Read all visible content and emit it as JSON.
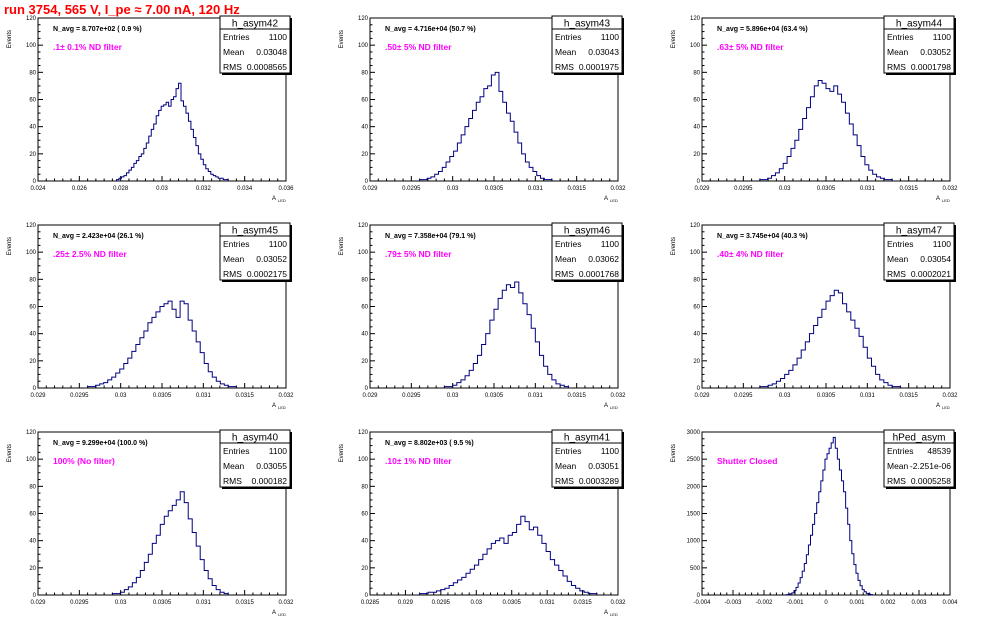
{
  "page_title": "run 3754,   565 V, I_pe ≈ 7.00 nA, 120 Hz",
  "colors": {
    "title": "#ff0000",
    "annotation": "#ff00ff",
    "histogram": "#000080",
    "axes": "#000000"
  },
  "chart_data": [
    {
      "type": "histogram",
      "stat_title": "h_asym42",
      "stats": [
        [
          "Entries",
          "1100"
        ],
        [
          "Mean",
          "0.03048"
        ],
        [
          "RMS",
          "0.0008565"
        ]
      ],
      "navg": "N_avg = 8.707e+02 ( 0.9 %)",
      "filter": ".1± 0.1% ND filter",
      "ylabel": "Events",
      "xlabel": "A",
      "xlabel_sub": "LED",
      "xlim": [
        0.024,
        0.036
      ],
      "ylim": [
        0,
        120
      ],
      "xticks": [
        "0.024",
        "0.026",
        "0.028",
        "0.03",
        "0.032",
        "0.034",
        "0.036"
      ],
      "yticks": [
        "0",
        "20",
        "40",
        "60",
        "80",
        "100",
        "120"
      ],
      "counts": [
        1,
        2,
        3,
        4,
        6,
        8,
        10,
        13,
        15,
        18,
        20,
        24,
        28,
        33,
        38,
        42,
        48,
        52,
        55,
        56,
        58,
        55,
        60,
        62,
        68,
        72,
        59,
        55,
        50,
        44,
        38,
        32,
        26,
        20,
        16,
        12,
        9,
        7,
        5,
        4,
        3,
        2,
        2,
        1,
        1
      ],
      "bin_range": [
        0.0278,
        0.0332
      ]
    },
    {
      "type": "histogram",
      "stat_title": "h_asym43",
      "stats": [
        [
          "Entries",
          "1100"
        ],
        [
          "Mean",
          "0.03043"
        ],
        [
          "RMS",
          "0.0001975"
        ]
      ],
      "navg": "N_avg = 4.716e+04 (50.7 %)",
      "filter": ".50± 5% ND filter",
      "ylabel": "Events",
      "xlabel": "A",
      "xlabel_sub": "LED",
      "xlim": [
        0.029,
        0.032
      ],
      "ylim": [
        0,
        120
      ],
      "xticks": [
        "0.029",
        "0.0295",
        "0.03",
        "0.0305",
        "0.031",
        "0.0315",
        "0.032"
      ],
      "yticks": [
        "0",
        "20",
        "40",
        "60",
        "80",
        "100",
        "120"
      ],
      "counts": [
        1,
        1,
        2,
        3,
        5,
        7,
        10,
        14,
        18,
        22,
        28,
        34,
        40,
        46,
        52,
        58,
        62,
        68,
        70,
        78,
        80,
        66,
        58,
        50,
        44,
        36,
        28,
        20,
        14,
        10,
        7,
        4,
        2,
        1,
        1
      ],
      "bin_range": [
        0.0296,
        0.0312
      ]
    },
    {
      "type": "histogram",
      "stat_title": "h_asym44",
      "stats": [
        [
          "Entries",
          "1100"
        ],
        [
          "Mean",
          "0.03052"
        ],
        [
          "RMS",
          "0.0001798"
        ]
      ],
      "navg": "N_avg = 5.896e+04 (63.4 %)",
      "filter": ".63± 5% ND filter",
      "ylabel": "Events",
      "xlabel": "A",
      "xlabel_sub": "LED",
      "xlim": [
        0.029,
        0.032
      ],
      "ylim": [
        0,
        120
      ],
      "xticks": [
        "0.029",
        "0.0295",
        "0.03",
        "0.0305",
        "0.031",
        "0.0315",
        "0.032"
      ],
      "yticks": [
        "0",
        "20",
        "40",
        "60",
        "80",
        "100",
        "120"
      ],
      "counts": [
        1,
        1,
        2,
        4,
        6,
        9,
        13,
        18,
        24,
        30,
        38,
        46,
        54,
        62,
        70,
        74,
        72,
        68,
        66,
        70,
        64,
        58,
        50,
        42,
        34,
        26,
        18,
        12,
        8,
        5,
        3,
        2,
        1,
        1
      ],
      "bin_range": [
        0.0297,
        0.0313
      ]
    },
    {
      "type": "histogram",
      "stat_title": "h_asym45",
      "stats": [
        [
          "Entries",
          "1100"
        ],
        [
          "Mean",
          "0.03052"
        ],
        [
          "RMS",
          "0.0002175"
        ]
      ],
      "navg": "N_avg = 2.423e+04 (26.1 %)",
      "filter": ".25± 2.5% ND filter",
      "ylabel": "Events",
      "xlabel": "A",
      "xlabel_sub": "LED",
      "xlim": [
        0.029,
        0.032
      ],
      "ylim": [
        0,
        120
      ],
      "xticks": [
        "0.029",
        "0.0295",
        "0.03",
        "0.0305",
        "0.031",
        "0.0315",
        "0.032"
      ],
      "yticks": [
        "0",
        "20",
        "40",
        "60",
        "80",
        "100",
        "120"
      ],
      "counts": [
        1,
        1,
        2,
        3,
        4,
        6,
        8,
        11,
        14,
        18,
        22,
        27,
        32,
        37,
        42,
        48,
        52,
        56,
        60,
        62,
        64,
        58,
        52,
        64,
        62,
        50,
        42,
        34,
        26,
        18,
        12,
        8,
        5,
        3,
        2,
        1,
        1
      ],
      "bin_range": [
        0.0296,
        0.0314
      ]
    },
    {
      "type": "histogram",
      "stat_title": "h_asym46",
      "stats": [
        [
          "Entries",
          "1100"
        ],
        [
          "Mean",
          "0.03062"
        ],
        [
          "RMS",
          "0.0001768"
        ]
      ],
      "navg": "N_avg = 7.358e+04 (79.1 %)",
      "filter": ".79± 5% ND filter",
      "ylabel": "Events",
      "xlabel": "A",
      "xlabel_sub": "LED",
      "xlim": [
        0.029,
        0.032
      ],
      "ylim": [
        0,
        120
      ],
      "xticks": [
        "0.029",
        "0.0295",
        "0.03",
        "0.0305",
        "0.031",
        "0.0315",
        "0.032"
      ],
      "yticks": [
        "0",
        "20",
        "40",
        "60",
        "80",
        "100",
        "120"
      ],
      "counts": [
        1,
        1,
        2,
        4,
        6,
        9,
        13,
        18,
        24,
        32,
        40,
        50,
        58,
        66,
        72,
        76,
        74,
        78,
        70,
        62,
        54,
        44,
        34,
        24,
        16,
        10,
        6,
        3,
        2,
        1
      ],
      "bin_range": [
        0.0299,
        0.0314
      ]
    },
    {
      "type": "histogram",
      "stat_title": "h_asym47",
      "stats": [
        [
          "Entries",
          "1100"
        ],
        [
          "Mean",
          "0.03054"
        ],
        [
          "RMS",
          "0.0002021"
        ]
      ],
      "navg": "N_avg = 3.745e+04 (40.3 %)",
      "filter": ".40± 4% ND filter",
      "ylabel": "Events",
      "xlabel": "A",
      "xlabel_sub": "LED",
      "xlim": [
        0.029,
        0.032
      ],
      "ylim": [
        0,
        120
      ],
      "xticks": [
        "0.029",
        "0.0295",
        "0.03",
        "0.0305",
        "0.031",
        "0.0315",
        "0.032"
      ],
      "yticks": [
        "0",
        "20",
        "40",
        "60",
        "80",
        "100",
        "120"
      ],
      "counts": [
        1,
        1,
        2,
        3,
        5,
        7,
        10,
        13,
        17,
        22,
        28,
        34,
        40,
        46,
        52,
        58,
        64,
        68,
        72,
        70,
        62,
        56,
        50,
        44,
        38,
        30,
        22,
        16,
        10,
        6,
        4,
        2,
        1,
        1
      ],
      "bin_range": [
        0.0297,
        0.0314
      ]
    },
    {
      "type": "histogram",
      "stat_title": "h_asym40",
      "stats": [
        [
          "Entries",
          "1100"
        ],
        [
          "Mean",
          "0.03055"
        ],
        [
          "RMS",
          "0.000182"
        ]
      ],
      "navg": "N_avg = 9.299e+04 (100.0 %)",
      "filter": "100% (No filter)",
      "ylabel": "Events",
      "xlabel": "A",
      "xlabel_sub": "LED",
      "xlim": [
        0.029,
        0.032
      ],
      "ylim": [
        0,
        120
      ],
      "xticks": [
        "0.029",
        "0.0295",
        "0.03",
        "0.0305",
        "0.031",
        "0.0315",
        "0.032"
      ],
      "yticks": [
        "0",
        "20",
        "40",
        "60",
        "80",
        "100",
        "120"
      ],
      "counts": [
        1,
        1,
        2,
        4,
        6,
        9,
        13,
        18,
        24,
        30,
        38,
        44,
        52,
        58,
        62,
        66,
        70,
        76,
        68,
        56,
        46,
        36,
        26,
        18,
        12,
        7,
        4,
        2,
        1
      ],
      "bin_range": [
        0.0299,
        0.0313
      ]
    },
    {
      "type": "histogram",
      "stat_title": "h_asym41",
      "stats": [
        [
          "Entries",
          "1100"
        ],
        [
          "Mean",
          "0.03051"
        ],
        [
          "RMS",
          "0.0003289"
        ]
      ],
      "navg": "N_avg = 8.802e+03 ( 9.5 %)",
      "filter": ".10± 1% ND filter",
      "ylabel": "Events",
      "xlabel": "A",
      "xlabel_sub": "LED",
      "xlim": [
        0.0285,
        0.032
      ],
      "ylim": [
        0,
        120
      ],
      "xticks": [
        "0.0285",
        "0.029",
        "0.0295",
        "0.03",
        "0.0305",
        "0.031",
        "0.0315",
        "0.032"
      ],
      "yticks": [
        "0",
        "20",
        "40",
        "60",
        "80",
        "100",
        "120"
      ],
      "counts": [
        1,
        1,
        2,
        2,
        3,
        4,
        5,
        7,
        9,
        11,
        13,
        16,
        19,
        22,
        26,
        30,
        34,
        38,
        40,
        42,
        38,
        44,
        46,
        52,
        58,
        54,
        48,
        50,
        44,
        38,
        32,
        26,
        22,
        18,
        14,
        10,
        7,
        5,
        3,
        2,
        1,
        1
      ],
      "bin_range": [
        0.0292,
        0.0317
      ]
    },
    {
      "type": "histogram",
      "stat_title": "hPed_asym",
      "stats": [
        [
          "Entries",
          "48539"
        ],
        [
          "Mean",
          "-2.251e-06"
        ],
        [
          "RMS",
          "0.0005258"
        ]
      ],
      "navg": "",
      "filter": "Shutter Closed",
      "ylabel": "Events",
      "xlabel": "",
      "xlabel_sub": "",
      "xlim": [
        -0.004,
        0.004
      ],
      "ylim": [
        0,
        3000
      ],
      "xticks": [
        "-0.004",
        "-0.003",
        "-0.002",
        "-0.001",
        "0",
        "0.001",
        "0.002",
        "0.003",
        "0.004"
      ],
      "yticks": [
        "0",
        "500",
        "1000",
        "1500",
        "2000",
        "2500",
        "3000"
      ],
      "counts": [
        5,
        10,
        20,
        40,
        80,
        140,
        220,
        320,
        440,
        580,
        740,
        920,
        1100,
        1300,
        1500,
        1700,
        1900,
        2100,
        2300,
        2500,
        2600,
        2700,
        2800,
        2900,
        2700,
        2500,
        2300,
        2100,
        1900,
        1600,
        1300,
        1000,
        760,
        560,
        400,
        270,
        170,
        100,
        60,
        30,
        15,
        8
      ],
      "bin_range": [
        -0.0013,
        0.0015
      ]
    }
  ]
}
